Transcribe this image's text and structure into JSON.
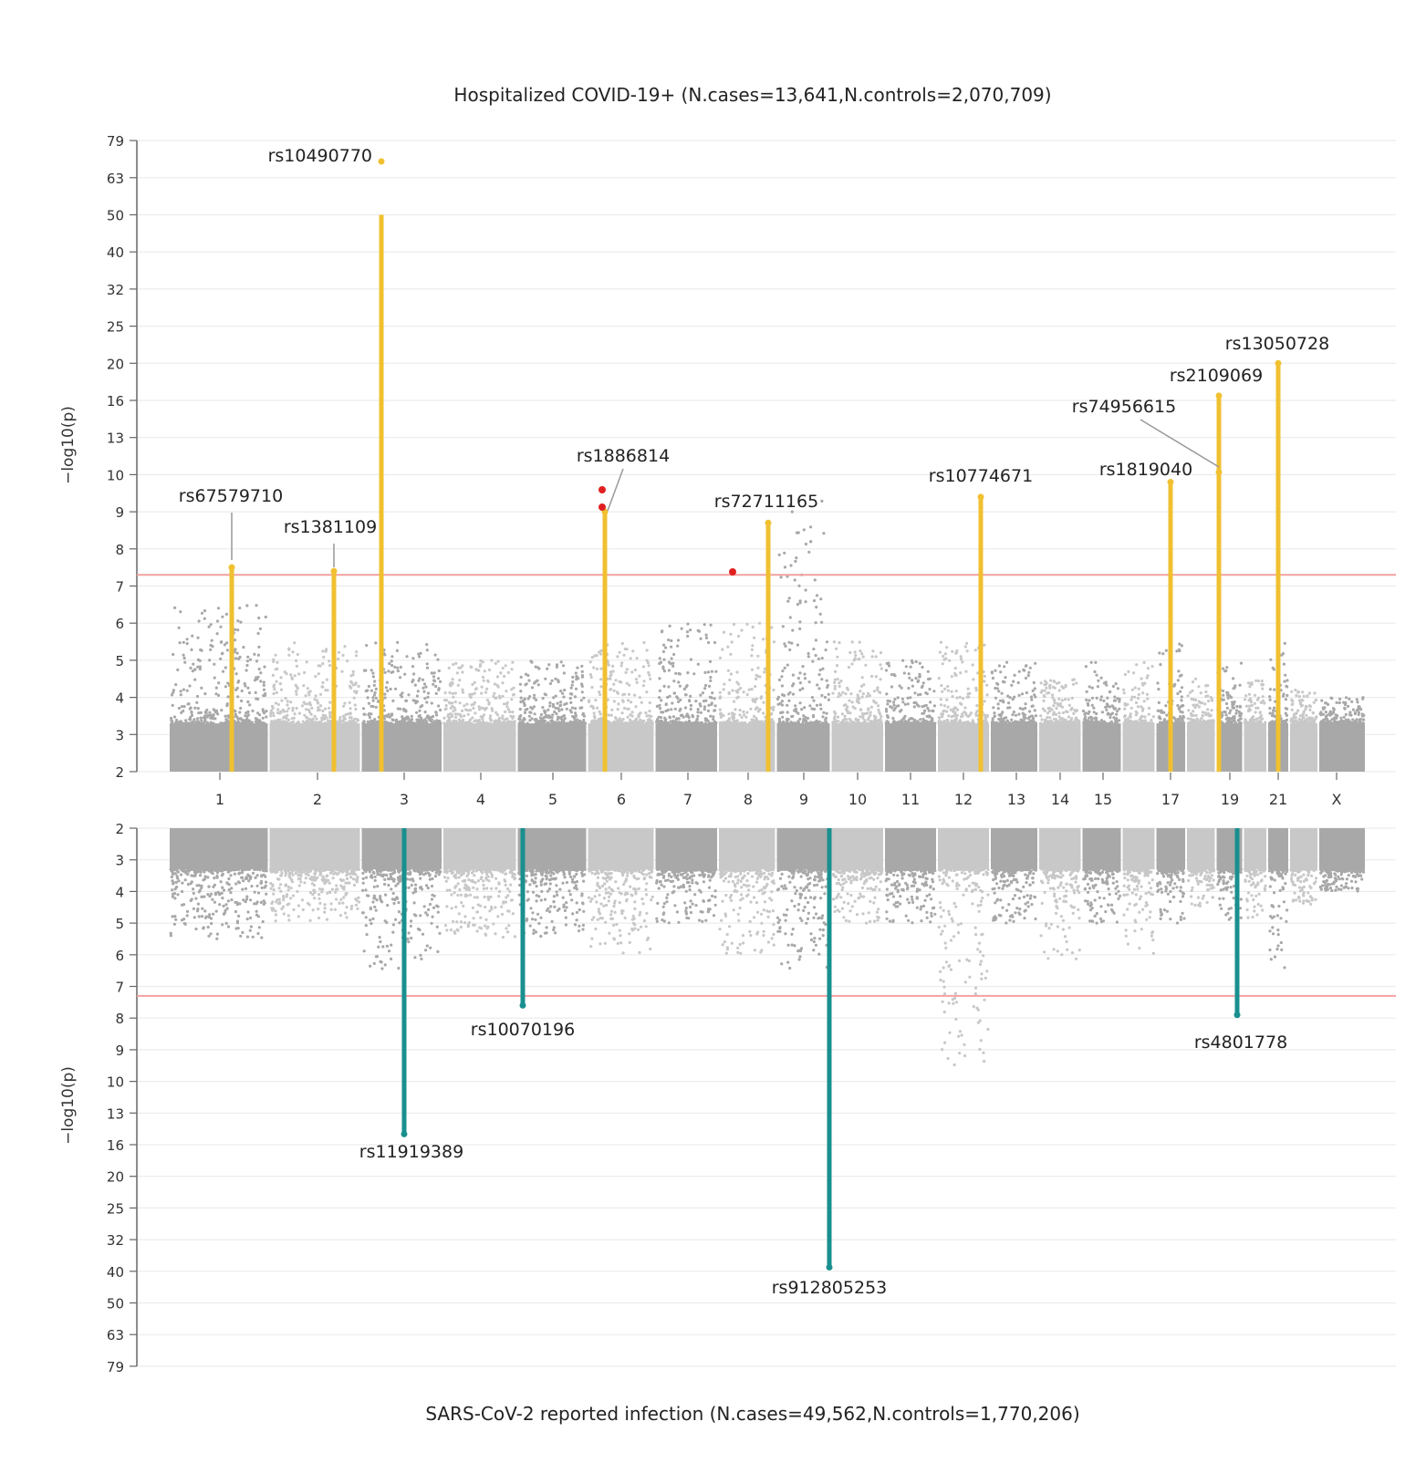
{
  "chart_data": {
    "type": "scatter",
    "subtype": "miami-plot",
    "top_panel": {
      "title": "Hospitalized COVID-19+ (N.cases=13,641,N.controls=2,070,709)",
      "ylabel": "−log10(p)",
      "yticks": [
        "2",
        "3",
        "4",
        "5",
        "6",
        "7",
        "8",
        "9",
        "10",
        "13",
        "16",
        "20",
        "25",
        "32",
        "40",
        "50",
        "63",
        "79"
      ],
      "significance_line": 7.3,
      "highlight_color": "#f0c030",
      "background_colors": [
        "#a8a8a8",
        "#c8c8c8"
      ],
      "peaks": [
        {
          "snp": "rs67579710",
          "chromosome": "1",
          "top_log10p": 7.5
        },
        {
          "snp": "rs1381109",
          "chromosome": "2",
          "top_log10p": 7.4
        },
        {
          "snp": "rs10490770",
          "chromosome": "3",
          "top_log10p": 70
        },
        {
          "snp": "rs1886814",
          "chromosome": "6",
          "top_log10p": 9.0
        },
        {
          "snp": "rs72711165",
          "chromosome": "8",
          "top_log10p": 8.7
        },
        {
          "snp": "rs10774671",
          "chromosome": "12",
          "top_log10p": 9.4
        },
        {
          "snp": "rs1819040",
          "chromosome": "17",
          "top_log10p": 9.8
        },
        {
          "snp": "rs74956615",
          "chromosome": "19",
          "top_log10p": 10.2
        },
        {
          "snp": "rs2109069",
          "chromosome": "19",
          "top_log10p": 16.5
        },
        {
          "snp": "rs13050728",
          "chromosome": "21",
          "top_log10p": 20
        }
      ]
    },
    "bottom_panel": {
      "title": "SARS-CoV-2 reported infection (N.cases=49,562,N.controls=1,770,206)",
      "ylabel": "−log10(p)",
      "yticks": [
        "2",
        "3",
        "4",
        "5",
        "6",
        "7",
        "8",
        "9",
        "10",
        "13",
        "16",
        "20",
        "25",
        "32",
        "40",
        "50",
        "63",
        "79"
      ],
      "significance_line": 7.3,
      "highlight_color": "#1a8f8f",
      "background_colors": [
        "#a8a8a8",
        "#c8c8c8"
      ],
      "peaks": [
        {
          "snp": "rs11919389",
          "chromosome": "3",
          "top_log10p": 15
        },
        {
          "snp": "rs10070196",
          "chromosome": "5",
          "top_log10p": 7.6
        },
        {
          "snp": "rs912805253",
          "chromosome": "9",
          "top_log10p": 39
        },
        {
          "snp": "rs4801778",
          "chromosome": "19",
          "top_log10p": 7.9
        }
      ]
    },
    "chromosome_labels": [
      "1",
      "2",
      "3",
      "4",
      "5",
      "6",
      "7",
      "8",
      "9",
      "10",
      "11",
      "12",
      "13",
      "14",
      "15",
      "17",
      "19",
      "21",
      "X"
    ]
  }
}
